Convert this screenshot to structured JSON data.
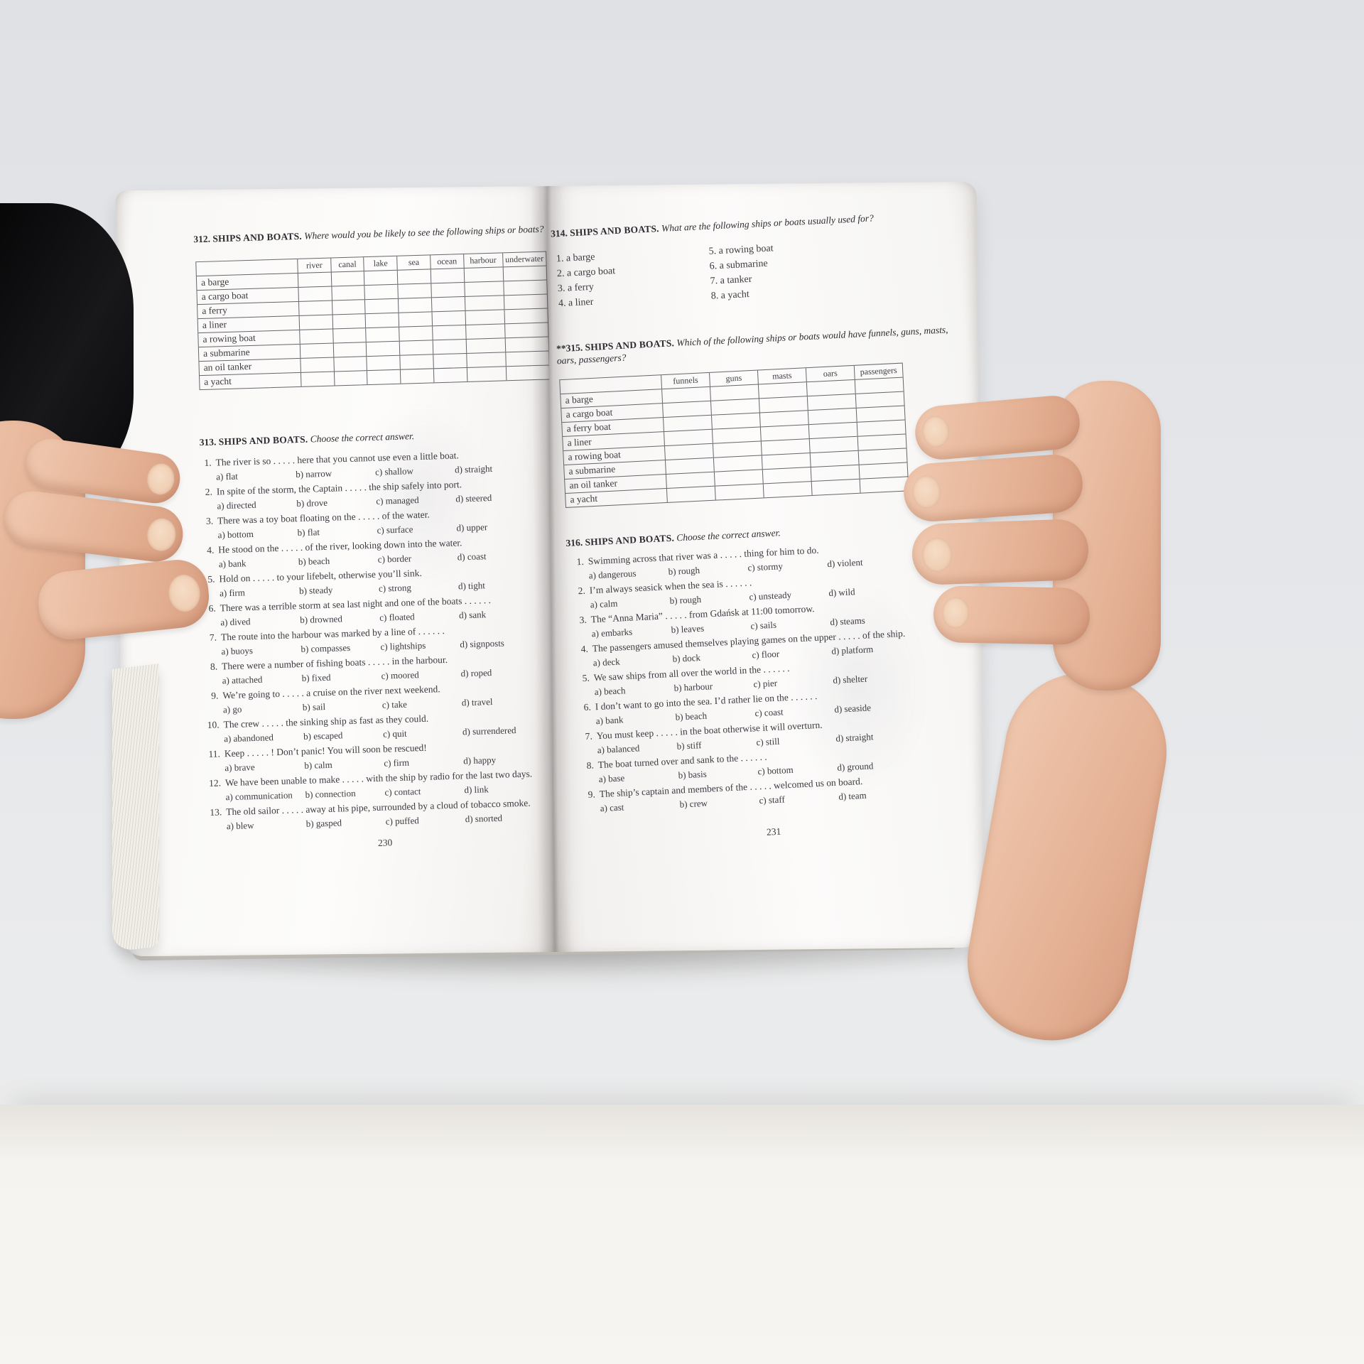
{
  "scene": {
    "description": "Two hands holding open an English vocabulary exercise book, pages 230-231, exercises on ships and boats",
    "colors": {
      "backdrop": "#e3e5e8",
      "desk": "#f5f3ef",
      "paper": "#fbfaf8",
      "ink": "#33333a",
      "sleeve": "#0e0e10",
      "skin": "#e9bda4"
    }
  },
  "left_page": {
    "page_number": "230",
    "ex312": {
      "number": "312.",
      "title": "SHIPS AND BOATS.",
      "prompt": "Where would you be likely to see the following ships or boats?",
      "table": {
        "columns": [
          "river",
          "canal",
          "lake",
          "sea",
          "ocean",
          "harbour",
          "underwater"
        ],
        "rows": [
          "a barge",
          "a cargo boat",
          "a ferry",
          "a liner",
          "a rowing boat",
          "a submarine",
          "an oil tanker",
          "a yacht"
        ]
      }
    },
    "ex313": {
      "number": "313.",
      "title": "SHIPS AND BOATS.",
      "prompt": "Choose the correct answer.",
      "questions": [
        {
          "num": "1.",
          "text": "The river is so . . . . . here that you cannot use even a little boat.",
          "options": [
            "a) flat",
            "b) narrow",
            "c) shallow",
            "d) straight"
          ]
        },
        {
          "num": "2.",
          "text": "In spite of the storm, the Captain . . . . . the ship safely into port.",
          "options": [
            "a) directed",
            "b) drove",
            "c) managed",
            "d) steered"
          ]
        },
        {
          "num": "3.",
          "text": "There was a toy boat floating on the . . . . . of the water.",
          "options": [
            "a) bottom",
            "b) flat",
            "c) surface",
            "d) upper"
          ]
        },
        {
          "num": "4.",
          "text": "He stood on the . . . . . of the river, looking down into the water.",
          "options": [
            "a) bank",
            "b) beach",
            "c) border",
            "d) coast"
          ]
        },
        {
          "num": "5.",
          "text": "Hold on . . . . . to your lifebelt, otherwise you’ll sink.",
          "options": [
            "a) firm",
            "b) steady",
            "c) strong",
            "d) tight"
          ]
        },
        {
          "num": "6.",
          "text": "There was a terrible storm at sea last night and one of the boats . . . . . .",
          "options": [
            "a) dived",
            "b) drowned",
            "c) floated",
            "d) sank"
          ]
        },
        {
          "num": "7.",
          "text": "The route into the harbour was marked by a line of . . . . . .",
          "options": [
            "a) buoys",
            "b) compasses",
            "c) lightships",
            "d) signposts"
          ]
        },
        {
          "num": "8.",
          "text": "There were a number of fishing boats . . . . . in the harbour.",
          "options": [
            "a) attached",
            "b) fixed",
            "c) moored",
            "d) roped"
          ]
        },
        {
          "num": "9.",
          "text": "We’re going to . . . . . a cruise on the river next weekend.",
          "options": [
            "a) go",
            "b) sail",
            "c) take",
            "d) travel"
          ]
        },
        {
          "num": "10.",
          "text": "The crew . . . . . the sinking ship as fast as they could.",
          "options": [
            "a) abandoned",
            "b) escaped",
            "c) quit",
            "d) surrendered"
          ]
        },
        {
          "num": "11.",
          "text": "Keep . . . . . ! Don’t panic! You will soon be rescued!",
          "options": [
            "a) brave",
            "b) calm",
            "c) firm",
            "d) happy"
          ]
        },
        {
          "num": "12.",
          "text": "We have been unable to make . . . . . with the ship by radio for the last two days.",
          "options": [
            "a) communication",
            "b) connection",
            "c) contact",
            "d) link"
          ]
        },
        {
          "num": "13.",
          "text": "The old sailor . . . . . away at his pipe, surrounded by a cloud of tobacco smoke.",
          "options": [
            "a) blew",
            "b) gasped",
            "c) puffed",
            "d) snorted"
          ]
        }
      ]
    }
  },
  "right_page": {
    "page_number": "231",
    "ex314": {
      "number": "314.",
      "title": "SHIPS AND BOATS.",
      "prompt": "What are the following ships or boats usually used for?",
      "list_col1": [
        "1. a barge",
        "2. a cargo boat",
        "3. a ferry",
        "4. a liner"
      ],
      "list_col2": [
        "5. a rowing boat",
        "6. a submarine",
        "7. a tanker",
        "8. a yacht"
      ]
    },
    "ex315": {
      "number": "**315.",
      "title": "SHIPS AND BOATS.",
      "prompt": "Which of the following ships or boats would have funnels, guns, masts, oars, passengers?",
      "table": {
        "columns": [
          "funnels",
          "guns",
          "masts",
          "oars",
          "passengers"
        ],
        "rows": [
          "a barge",
          "a cargo boat",
          "a ferry boat",
          "a liner",
          "a rowing boat",
          "a submarine",
          "an oil tanker",
          "a yacht"
        ]
      }
    },
    "ex316": {
      "number": "316.",
      "title": "SHIPS AND BOATS.",
      "prompt": "Choose the correct answer.",
      "questions": [
        {
          "num": "1.",
          "text": "Swimming across that river was a . . . . . thing for him to do.",
          "options": [
            "a) dangerous",
            "b) rough",
            "c) stormy",
            "d) violent"
          ]
        },
        {
          "num": "2.",
          "text": "I’m always seasick when the sea is . . . . . .",
          "options": [
            "a) calm",
            "b) rough",
            "c) unsteady",
            "d) wild"
          ]
        },
        {
          "num": "3.",
          "text": "The “Anna Maria” . . . . . from Gdańsk at 11:00 tomorrow.",
          "options": [
            "a) embarks",
            "b) leaves",
            "c) sails",
            "d) steams"
          ]
        },
        {
          "num": "4.",
          "text": "The passengers amused themselves playing games on the upper . . . . . of the ship.",
          "options": [
            "a) deck",
            "b) dock",
            "c) floor",
            "d) platform"
          ]
        },
        {
          "num": "5.",
          "text": "We saw ships from all over the world in the . . . . . .",
          "options": [
            "a) beach",
            "b) harbour",
            "c) pier",
            "d) shelter"
          ]
        },
        {
          "num": "6.",
          "text": "I don’t want to go into the sea. I’d rather lie on the . . . . . .",
          "options": [
            "a) bank",
            "b) beach",
            "c) coast",
            "d) seaside"
          ]
        },
        {
          "num": "7.",
          "text": "You must keep . . . . . in the boat otherwise it will overturn.",
          "options": [
            "a) balanced",
            "b) stiff",
            "c) still",
            "d) straight"
          ]
        },
        {
          "num": "8.",
          "text": "The boat turned over and sank to the . . . . . .",
          "options": [
            "a) base",
            "b) basis",
            "c) bottom",
            "d) ground"
          ]
        },
        {
          "num": "9.",
          "text": "The ship’s captain and members of the . . . . . welcomed us on board.",
          "options": [
            "a) cast",
            "b) crew",
            "c) staff",
            "d) team"
          ]
        }
      ]
    }
  }
}
